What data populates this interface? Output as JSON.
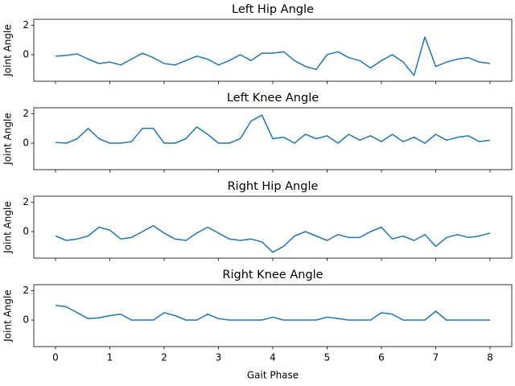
{
  "chart_data": [
    {
      "type": "line",
      "title": "Left Hip Angle",
      "ylabel": "Joint Angle",
      "color": "#1f77b4",
      "x": [
        0,
        0.2,
        0.4,
        0.6,
        0.8,
        1.0,
        1.2,
        1.4,
        1.6,
        1.8,
        2.0,
        2.2,
        2.4,
        2.6,
        2.8,
        3.0,
        3.2,
        3.4,
        3.6,
        3.8,
        4.0,
        4.2,
        4.4,
        4.6,
        4.8,
        5.0,
        5.2,
        5.4,
        5.6,
        5.8,
        6.0,
        6.2,
        6.4,
        6.6,
        6.8,
        7.0,
        7.2,
        7.4,
        7.6,
        7.8,
        8.0
      ],
      "values": [
        -0.1,
        -0.05,
        0.05,
        -0.3,
        -0.6,
        -0.5,
        -0.7,
        -0.3,
        0.1,
        -0.2,
        -0.6,
        -0.7,
        -0.4,
        -0.1,
        -0.3,
        -0.7,
        -0.4,
        0.0,
        -0.4,
        0.1,
        0.1,
        0.2,
        -0.4,
        -0.8,
        -1.0,
        0.0,
        0.2,
        -0.2,
        -0.4,
        -0.9,
        -0.4,
        0.0,
        -0.5,
        -1.4,
        1.2,
        -0.8,
        -0.5,
        -0.3,
        -0.2,
        -0.5,
        -0.6
      ],
      "xlim": [
        -0.4,
        8.4
      ],
      "xticks": [
        0,
        1,
        2,
        3,
        4,
        5,
        6,
        7,
        8
      ],
      "ylim": [
        -1.8,
        2.4
      ],
      "yticks": [
        0,
        2
      ]
    },
    {
      "type": "line",
      "title": "Left Knee Angle",
      "ylabel": "Joint Angle",
      "color": "#1f77b4",
      "x": [
        0,
        0.2,
        0.4,
        0.6,
        0.8,
        1.0,
        1.2,
        1.4,
        1.6,
        1.8,
        2.0,
        2.2,
        2.4,
        2.6,
        2.8,
        3.0,
        3.2,
        3.4,
        3.6,
        3.8,
        4.0,
        4.2,
        4.4,
        4.6,
        4.8,
        5.0,
        5.2,
        5.4,
        5.6,
        5.8,
        6.0,
        6.2,
        6.4,
        6.6,
        6.8,
        7.0,
        7.2,
        7.4,
        7.6,
        7.8,
        8.0
      ],
      "values": [
        0.05,
        0,
        0.3,
        1.0,
        0.3,
        0,
        0,
        0.1,
        1.0,
        1.0,
        0,
        0,
        0.3,
        1.1,
        0.6,
        0,
        0,
        0.3,
        1.5,
        1.9,
        0.3,
        0.4,
        0,
        0.6,
        0.3,
        0.5,
        0,
        0.6,
        0.2,
        0.5,
        0.1,
        0.6,
        0.1,
        0.4,
        0,
        0.6,
        0.2,
        0.4,
        0.5,
        0.1,
        0.2
      ],
      "xlim": [
        -0.4,
        8.4
      ],
      "xticks": [
        0,
        1,
        2,
        3,
        4,
        5,
        6,
        7,
        8
      ],
      "ylim": [
        -1.8,
        2.4
      ],
      "yticks": [
        0,
        2
      ]
    },
    {
      "type": "line",
      "title": "Right Hip Angle",
      "ylabel": "Joint Angle",
      "color": "#1f77b4",
      "x": [
        0,
        0.2,
        0.4,
        0.6,
        0.8,
        1.0,
        1.2,
        1.4,
        1.6,
        1.8,
        2.0,
        2.2,
        2.4,
        2.6,
        2.8,
        3.0,
        3.2,
        3.4,
        3.6,
        3.8,
        4.0,
        4.2,
        4.4,
        4.6,
        4.8,
        5.0,
        5.2,
        5.4,
        5.6,
        5.8,
        6.0,
        6.2,
        6.4,
        6.6,
        6.8,
        7.0,
        7.2,
        7.4,
        7.6,
        7.8,
        8.0
      ],
      "values": [
        -0.3,
        -0.6,
        -0.5,
        -0.3,
        0.3,
        0.1,
        -0.5,
        -0.4,
        0.0,
        0.4,
        -0.1,
        -0.5,
        -0.6,
        -0.1,
        0.3,
        -0.1,
        -0.5,
        -0.6,
        -0.5,
        -0.7,
        -1.4,
        -1.0,
        -0.3,
        0.0,
        -0.3,
        -0.6,
        -0.2,
        -0.4,
        -0.4,
        0.0,
        0.3,
        -0.5,
        -0.3,
        -0.6,
        -0.2,
        -1.0,
        -0.4,
        -0.2,
        -0.4,
        -0.3,
        -0.1
      ],
      "xlim": [
        -0.4,
        8.4
      ],
      "xticks": [
        0,
        1,
        2,
        3,
        4,
        5,
        6,
        7,
        8
      ],
      "ylim": [
        -1.8,
        2.4
      ],
      "yticks": [
        0,
        2
      ]
    },
    {
      "type": "line",
      "title": "Right Knee Angle",
      "ylabel": "Joint Angle",
      "xlabel": "Gait Phase",
      "color": "#1f77b4",
      "x": [
        0,
        0.2,
        0.4,
        0.6,
        0.8,
        1.0,
        1.2,
        1.4,
        1.6,
        1.8,
        2.0,
        2.2,
        2.4,
        2.6,
        2.8,
        3.0,
        3.2,
        3.4,
        3.6,
        3.8,
        4.0,
        4.2,
        4.4,
        4.6,
        4.8,
        5.0,
        5.2,
        5.4,
        5.6,
        5.8,
        6.0,
        6.2,
        6.4,
        6.6,
        6.8,
        7.0,
        7.2,
        7.4,
        7.6,
        7.8,
        8.0
      ],
      "values": [
        1.0,
        0.9,
        0.5,
        0.1,
        0.15,
        0.3,
        0.4,
        0,
        0,
        0,
        0.5,
        0.3,
        0,
        0,
        0.4,
        0.1,
        0,
        0,
        0,
        0,
        0.2,
        0,
        0,
        0,
        0,
        0.2,
        0.1,
        0,
        0,
        0,
        0.5,
        0.4,
        0,
        0,
        0,
        0.6,
        0,
        0,
        0,
        0,
        0
      ],
      "xlim": [
        -0.4,
        8.4
      ],
      "xticks": [
        0,
        1,
        2,
        3,
        4,
        5,
        6,
        7,
        8
      ],
      "ylim": [
        -1.8,
        2.4
      ],
      "yticks": [
        0,
        2
      ]
    }
  ]
}
